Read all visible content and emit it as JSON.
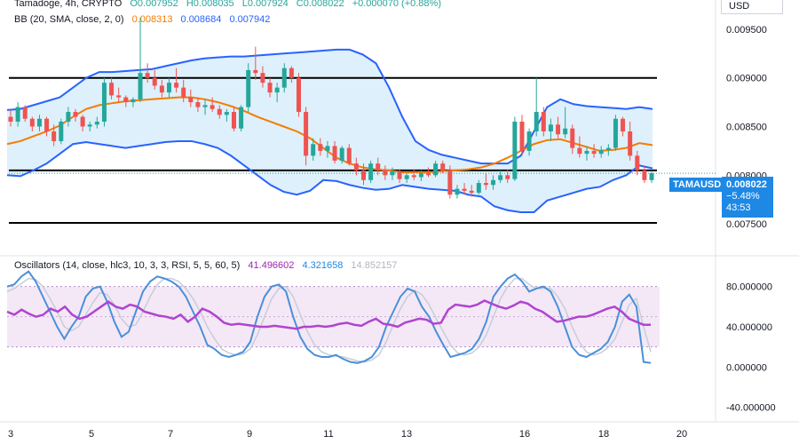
{
  "header": {
    "symbol_line": "Tamadoge, 4h, CRYPTO",
    "open": "O0.007952",
    "high": "H0.008035",
    "low": "L0.007924",
    "close": "C0.008022",
    "change": "+0.000070 (+0.88%)",
    "bb_label": "BB (20, SMA, close, 2, 0)",
    "bb_basis": "0.008313",
    "bb_upper": "0.008684",
    "bb_lower": "0.007942",
    "osc_label": "Oscillators (14, close, hlc3, 10, 3, 3, RSI, 5, 5, 60, 5)",
    "osc_v1": "41.496602",
    "osc_v2": "4.321658",
    "osc_v3": "14.852157"
  },
  "currency": "USD",
  "price_tag": {
    "symbol": "TAMAUSD",
    "price": "0.008022",
    "change": "−5.48%",
    "countdown": "43:53"
  },
  "colors": {
    "up": "#26a69a",
    "down": "#ef5350",
    "bb_basis": "#f57c00",
    "bb_band": "#2962ff",
    "bb_fill": "#d6ecfa",
    "rsi": "#b044d0",
    "stoch_k": "#4a90d9",
    "stoch_d": "#c7cdd8",
    "osc_band": "#f3e5f5"
  },
  "chart_data": [
    {
      "type": "candlestick",
      "x_tick_labels": [
        "3",
        "5",
        "7",
        "9",
        "11",
        "13",
        "16",
        "18",
        "20"
      ],
      "y_tick_labels": [
        "0.009500",
        "0.009000",
        "0.008500",
        "0.008000",
        "0.007500"
      ],
      "ylim": [
        0.0072,
        0.0098
      ],
      "horizontal_levels": [
        0.009,
        0.00805,
        0.00751
      ],
      "candles": [
        [
          0.0086,
          0.00868,
          0.0085,
          0.00855
        ],
        [
          0.00855,
          0.00875,
          0.0085,
          0.0087
        ],
        [
          0.0087,
          0.00872,
          0.00855,
          0.00858
        ],
        [
          0.00858,
          0.0086,
          0.00845,
          0.0085
        ],
        [
          0.0085,
          0.00862,
          0.00845,
          0.00858
        ],
        [
          0.00858,
          0.0086,
          0.0084,
          0.00845
        ],
        [
          0.00845,
          0.00852,
          0.0083,
          0.00835
        ],
        [
          0.00835,
          0.00858,
          0.00832,
          0.00855
        ],
        [
          0.00855,
          0.0087,
          0.0085,
          0.00865
        ],
        [
          0.00865,
          0.00868,
          0.00855,
          0.0086
        ],
        [
          0.0086,
          0.00862,
          0.00845,
          0.0085
        ],
        [
          0.0085,
          0.00855,
          0.00845,
          0.00852
        ],
        [
          0.00852,
          0.0086,
          0.00848,
          0.00855
        ],
        [
          0.00855,
          0.009,
          0.0085,
          0.00895
        ],
        [
          0.00895,
          0.009,
          0.00878,
          0.00882
        ],
        [
          0.00882,
          0.0089,
          0.00875,
          0.0088
        ],
        [
          0.0088,
          0.00882,
          0.0087,
          0.00875
        ],
        [
          0.00875,
          0.0088,
          0.0087,
          0.00878
        ],
        [
          0.00878,
          0.00962,
          0.00875,
          0.00905
        ],
        [
          0.00905,
          0.00915,
          0.00895,
          0.009
        ],
        [
          0.009,
          0.00908,
          0.00888,
          0.00892
        ],
        [
          0.00892,
          0.00898,
          0.0088,
          0.00885
        ],
        [
          0.00885,
          0.009,
          0.0088,
          0.00895
        ],
        [
          0.00895,
          0.0091,
          0.00885,
          0.0089
        ],
        [
          0.0089,
          0.00898,
          0.00875,
          0.0088
        ],
        [
          0.0088,
          0.00888,
          0.0087,
          0.00875
        ],
        [
          0.00875,
          0.0088,
          0.00865,
          0.0087
        ],
        [
          0.0087,
          0.00878,
          0.00862,
          0.00872
        ],
        [
          0.00872,
          0.0088,
          0.00865,
          0.00868
        ],
        [
          0.00868,
          0.00872,
          0.00858,
          0.00862
        ],
        [
          0.00862,
          0.00868,
          0.00855,
          0.00865
        ],
        [
          0.00865,
          0.0087,
          0.00845,
          0.00848
        ],
        [
          0.00848,
          0.00872,
          0.00845,
          0.0087
        ],
        [
          0.0087,
          0.00915,
          0.00865,
          0.00908
        ],
        [
          0.00908,
          0.00932,
          0.00898,
          0.00905
        ],
        [
          0.00905,
          0.00912,
          0.0089,
          0.00895
        ],
        [
          0.00895,
          0.009,
          0.0088,
          0.00885
        ],
        [
          0.00885,
          0.00895,
          0.00875,
          0.0089
        ],
        [
          0.0089,
          0.00915,
          0.00885,
          0.0091
        ],
        [
          0.0091,
          0.00912,
          0.00895,
          0.009
        ],
        [
          0.009,
          0.00905,
          0.0086,
          0.00865
        ],
        [
          0.00865,
          0.0087,
          0.0081,
          0.0082
        ],
        [
          0.0082,
          0.00838,
          0.00815,
          0.00832
        ],
        [
          0.00832,
          0.00838,
          0.0082,
          0.00825
        ],
        [
          0.00825,
          0.00835,
          0.00818,
          0.0083
        ],
        [
          0.0083,
          0.00835,
          0.00812,
          0.00815
        ],
        [
          0.00815,
          0.0083,
          0.00812,
          0.00828
        ],
        [
          0.00828,
          0.00832,
          0.0081,
          0.00812
        ],
        [
          0.00812,
          0.00818,
          0.008,
          0.00805
        ],
        [
          0.00805,
          0.00812,
          0.0079,
          0.00795
        ],
        [
          0.00795,
          0.00815,
          0.00792,
          0.00812
        ],
        [
          0.00812,
          0.00818,
          0.008,
          0.00805
        ],
        [
          0.00805,
          0.0081,
          0.00795,
          0.008
        ],
        [
          0.008,
          0.00808,
          0.00795,
          0.00804
        ],
        [
          0.00804,
          0.00806,
          0.00792,
          0.00796
        ],
        [
          0.00796,
          0.00802,
          0.00792,
          0.008
        ],
        [
          0.008,
          0.00806,
          0.00795,
          0.00798
        ],
        [
          0.00798,
          0.00805,
          0.00794,
          0.00802
        ],
        [
          0.00802,
          0.00808,
          0.00798,
          0.008
        ],
        [
          0.008,
          0.00815,
          0.00798,
          0.00812
        ],
        [
          0.00812,
          0.00815,
          0.00802,
          0.00805
        ],
        [
          0.00805,
          0.0081,
          0.00776,
          0.0078
        ],
        [
          0.0078,
          0.0079,
          0.00776,
          0.00786
        ],
        [
          0.00786,
          0.00792,
          0.0078,
          0.00784
        ],
        [
          0.00784,
          0.0079,
          0.00778,
          0.00782
        ],
        [
          0.00782,
          0.00795,
          0.0078,
          0.00792
        ],
        [
          0.00792,
          0.00802,
          0.00785,
          0.0079
        ],
        [
          0.0079,
          0.008,
          0.00785,
          0.00795
        ],
        [
          0.00795,
          0.00805,
          0.00792,
          0.008
        ],
        [
          0.008,
          0.00806,
          0.00792,
          0.00796
        ],
        [
          0.00796,
          0.0086,
          0.00794,
          0.00855
        ],
        [
          0.00855,
          0.00862,
          0.0082,
          0.00825
        ],
        [
          0.00825,
          0.00848,
          0.0082,
          0.00845
        ],
        [
          0.00845,
          0.009,
          0.0084,
          0.00865
        ],
        [
          0.00865,
          0.0087,
          0.0084,
          0.00845
        ],
        [
          0.00845,
          0.00858,
          0.00835,
          0.00852
        ],
        [
          0.00852,
          0.0086,
          0.00838,
          0.00842
        ],
        [
          0.00842,
          0.0087,
          0.00838,
          0.00848
        ],
        [
          0.00848,
          0.00852,
          0.00822,
          0.00828
        ],
        [
          0.00828,
          0.0084,
          0.00818,
          0.00822
        ],
        [
          0.00822,
          0.0083,
          0.00815,
          0.00825
        ],
        [
          0.00825,
          0.00832,
          0.00818,
          0.00822
        ],
        [
          0.00822,
          0.0083,
          0.00818,
          0.00826
        ],
        [
          0.00826,
          0.00832,
          0.0082,
          0.00828
        ],
        [
          0.00828,
          0.00862,
          0.00825,
          0.00858
        ],
        [
          0.00858,
          0.0086,
          0.0084,
          0.00845
        ],
        [
          0.00845,
          0.00855,
          0.00815,
          0.0082
        ],
        [
          0.0082,
          0.00825,
          0.008,
          0.00805
        ],
        [
          0.00805,
          0.0081,
          0.00792,
          0.00795
        ],
        [
          0.00795,
          0.00805,
          0.00792,
          0.00802
        ]
      ],
      "bb_upper": [
        0.00867,
        0.00868,
        0.00872,
        0.00876,
        0.0088,
        0.0089,
        0.009,
        0.00906,
        0.00906,
        0.00907,
        0.00908,
        0.00909,
        0.00912,
        0.00915,
        0.00918,
        0.0092,
        0.00921,
        0.00922,
        0.00922,
        0.00923,
        0.00924,
        0.00925,
        0.00926,
        0.00927,
        0.00928,
        0.00929,
        0.00929,
        0.00924,
        0.00915,
        0.0089,
        0.0086,
        0.00835,
        0.00826,
        0.00821,
        0.00818,
        0.00815,
        0.00812,
        0.00812,
        0.00812,
        0.0082,
        0.00845,
        0.0087,
        0.00878,
        0.00873,
        0.00871,
        0.0087,
        0.00869,
        0.00868,
        0.0087,
        0.00868
      ],
      "bb_basis": [
        0.00832,
        0.00835,
        0.0084,
        0.00845,
        0.00851,
        0.0086,
        0.00868,
        0.00872,
        0.00874,
        0.00876,
        0.00877,
        0.00878,
        0.00879,
        0.0088,
        0.0088,
        0.00878,
        0.00875,
        0.00871,
        0.00866,
        0.0086,
        0.00855,
        0.0085,
        0.00845,
        0.00838,
        0.00828,
        0.00818,
        0.00812,
        0.00808,
        0.00806,
        0.00805,
        0.00803,
        0.00803,
        0.00803,
        0.00804,
        0.00805,
        0.00806,
        0.00808,
        0.00812,
        0.00818,
        0.00825,
        0.00832,
        0.00836,
        0.00837,
        0.00833,
        0.00829,
        0.00825,
        0.00826,
        0.00828,
        0.00833,
        0.00831
      ],
      "bb_lower": [
        0.008,
        0.00799,
        0.00805,
        0.00812,
        0.00822,
        0.00832,
        0.00834,
        0.00832,
        0.0083,
        0.00828,
        0.0083,
        0.00832,
        0.00834,
        0.00835,
        0.00835,
        0.00832,
        0.00828,
        0.0082,
        0.0081,
        0.008,
        0.0079,
        0.00783,
        0.0078,
        0.00784,
        0.00795,
        0.00794,
        0.0079,
        0.00787,
        0.00785,
        0.00786,
        0.0079,
        0.00788,
        0.00786,
        0.00785,
        0.00784,
        0.0078,
        0.00778,
        0.00768,
        0.00764,
        0.00762,
        0.00762,
        0.00774,
        0.00778,
        0.00782,
        0.00786,
        0.00788,
        0.00795,
        0.008,
        0.0081,
        0.00807
      ]
    },
    {
      "type": "line",
      "name": "Oscillators",
      "y_tick_labels": [
        "80.000000",
        "40.000000",
        "0.000000",
        "-40.000000"
      ],
      "ylim": [
        -50,
        100
      ],
      "band": [
        20,
        80
      ],
      "rsi": [
        55,
        52,
        57,
        53,
        50,
        52,
        58,
        55,
        60,
        52,
        48,
        50,
        55,
        60,
        65,
        60,
        58,
        62,
        60,
        55,
        53,
        51,
        50,
        48,
        52,
        45,
        50,
        58,
        55,
        50,
        44,
        42,
        43,
        42,
        41,
        40,
        40,
        41,
        40,
        39,
        38,
        40,
        40,
        41,
        40,
        41,
        43,
        44,
        42,
        41,
        45,
        48,
        43,
        42,
        40,
        44,
        46,
        48,
        47,
        43,
        44,
        57,
        62,
        61,
        60,
        62,
        66,
        63,
        60,
        58,
        61,
        65,
        63,
        58,
        55,
        50,
        45,
        46,
        48,
        50,
        50,
        52,
        55,
        58,
        60,
        55,
        48,
        45,
        42,
        42
      ],
      "stoch_k": [
        80,
        82,
        90,
        95,
        85,
        70,
        55,
        40,
        28,
        40,
        50,
        70,
        78,
        80,
        65,
        45,
        30,
        35,
        55,
        75,
        85,
        90,
        88,
        85,
        80,
        70,
        55,
        40,
        22,
        18,
        12,
        10,
        12,
        15,
        25,
        50,
        70,
        80,
        82,
        75,
        50,
        30,
        18,
        12,
        10,
        10,
        12,
        8,
        5,
        4,
        6,
        10,
        20,
        40,
        55,
        70,
        78,
        75,
        60,
        50,
        35,
        22,
        10,
        12,
        14,
        18,
        28,
        45,
        70,
        80,
        88,
        92,
        85,
        75,
        78,
        80,
        75,
        60,
        40,
        20,
        12,
        10,
        14,
        18,
        25,
        40,
        65,
        72,
        60,
        5,
        4
      ],
      "stoch_d": [
        75,
        78,
        83,
        88,
        87,
        80,
        68,
        55,
        40,
        36,
        40,
        52,
        64,
        74,
        72,
        62,
        48,
        40,
        42,
        55,
        70,
        82,
        88,
        88,
        85,
        78,
        68,
        55,
        40,
        28,
        18,
        14,
        12,
        13,
        18,
        32,
        50,
        68,
        78,
        80,
        70,
        52,
        35,
        22,
        15,
        12,
        11,
        10,
        8,
        6,
        5,
        7,
        12,
        25,
        42,
        58,
        70,
        76,
        72,
        62,
        48,
        35,
        22,
        14,
        12,
        14,
        20,
        32,
        50,
        68,
        80,
        88,
        88,
        82,
        78,
        78,
        78,
        70,
        58,
        40,
        25,
        15,
        12,
        14,
        19,
        28,
        45,
        62,
        68,
        40,
        15
      ]
    }
  ]
}
